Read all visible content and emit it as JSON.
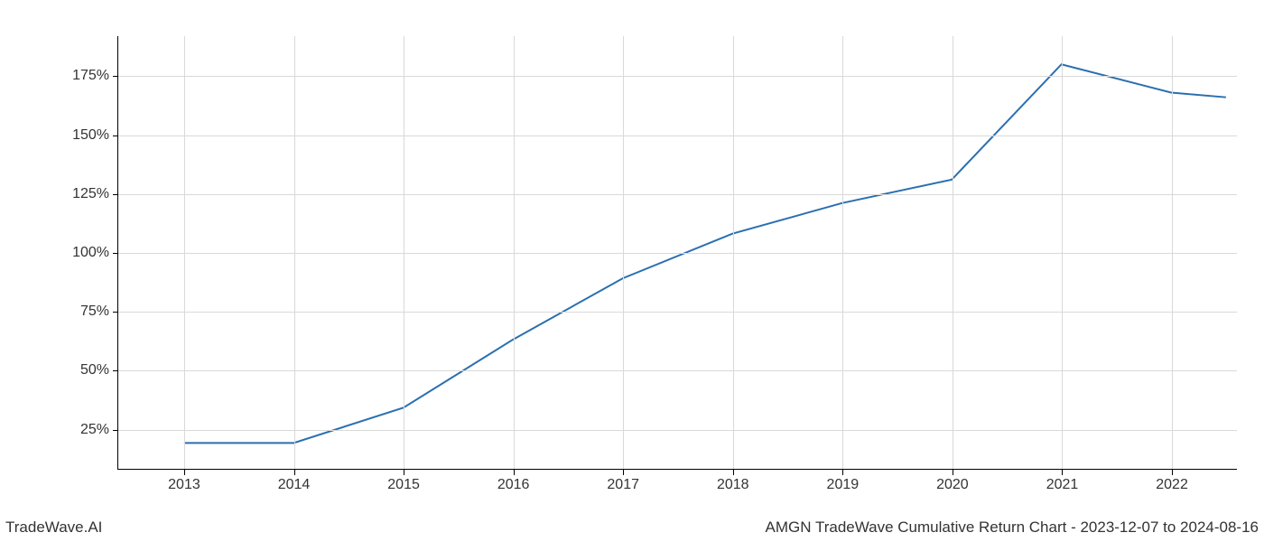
{
  "chart": {
    "type": "line",
    "x_values": [
      2013,
      2014,
      2015,
      2016,
      2017,
      2018,
      2019,
      2020,
      2021,
      2022,
      2022.5
    ],
    "y_values": [
      19,
      19,
      34,
      63,
      89,
      108,
      121,
      131,
      180,
      168,
      166
    ],
    "line_color": "#2a6fb0",
    "line_width": 2,
    "x_ticks": [
      2013,
      2014,
      2015,
      2016,
      2017,
      2018,
      2019,
      2020,
      2021,
      2022
    ],
    "x_tick_labels": [
      "2013",
      "2014",
      "2015",
      "2016",
      "2017",
      "2018",
      "2019",
      "2020",
      "2021",
      "2022"
    ],
    "y_ticks": [
      25,
      50,
      75,
      100,
      125,
      150,
      175
    ],
    "y_tick_labels": [
      "25%",
      "50%",
      "75%",
      "100%",
      "125%",
      "150%",
      "175%"
    ],
    "xlim": [
      2012.4,
      2022.6
    ],
    "ylim": [
      8,
      192
    ],
    "grid_color": "#d9d9d9",
    "background_color": "#ffffff",
    "axis_color": "#000000",
    "tick_fontsize": 16,
    "tick_color": "#333333"
  },
  "footer": {
    "left": "TradeWave.AI",
    "right": "AMGN TradeWave Cumulative Return Chart - 2023-12-07 to 2024-08-16",
    "fontsize": 17,
    "color": "#333333"
  }
}
